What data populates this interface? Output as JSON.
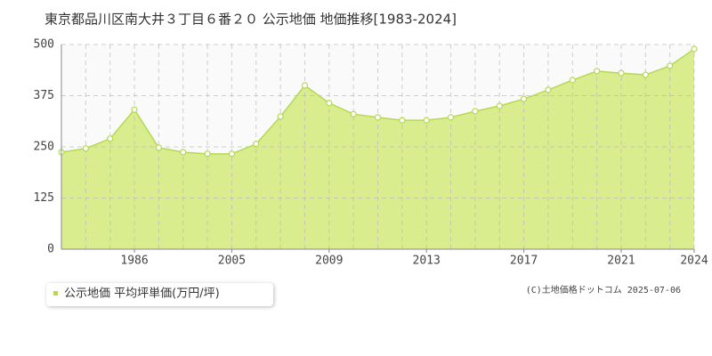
{
  "chart_data": {
    "type": "area",
    "title": "東京都品川区南大井３丁目６番２０ 公示地価 地価推移[1983-2024]",
    "categories": [
      null,
      null,
      null,
      "1986",
      null,
      null,
      null,
      "2005",
      null,
      null,
      null,
      "2009",
      null,
      null,
      null,
      "2013",
      null,
      null,
      null,
      "2017",
      null,
      null,
      null,
      "2021",
      null,
      null,
      "2024"
    ],
    "series": [
      {
        "name": "公示地価 平均坪単価(万円/坪)",
        "color": "#b5d955",
        "values": [
          237,
          246,
          270,
          341,
          248,
          237,
          233,
          233,
          257,
          324,
          400,
          357,
          330,
          322,
          315,
          315,
          322,
          337,
          350,
          367,
          389,
          413,
          435,
          430,
          426,
          448,
          489
        ]
      }
    ],
    "ylim": [
      0,
      500
    ],
    "yticks": [
      0,
      125,
      250,
      375,
      500
    ],
    "grid": true,
    "credit": "(C)土地価格ドットコム 2025-07-06"
  }
}
